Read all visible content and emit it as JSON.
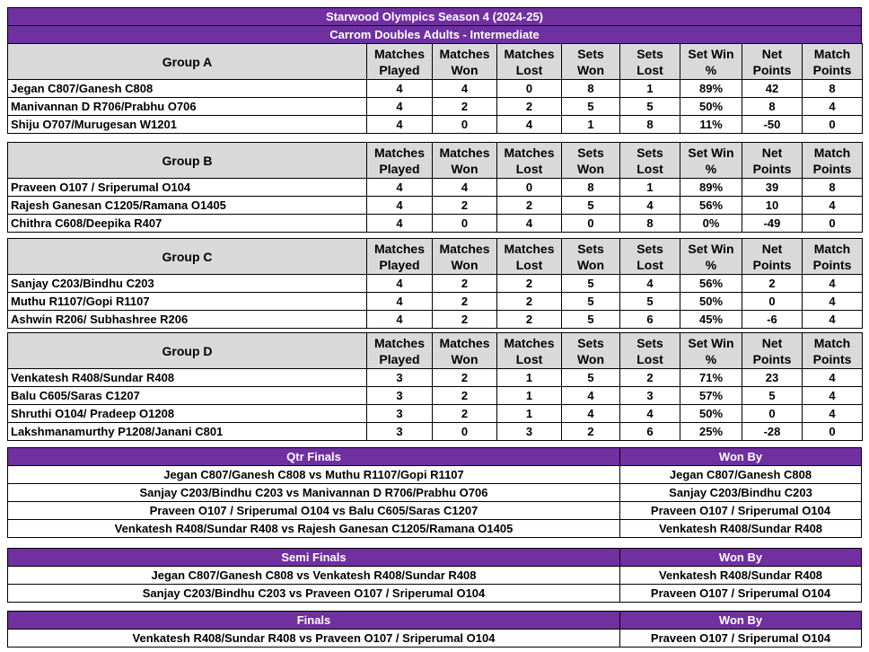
{
  "title": "Starwood Olympics Season 4 (2024-25)",
  "subtitle": "Carrom Doubles Adults - Intermediate",
  "columns": [
    [
      "Matches",
      "Played"
    ],
    [
      "Matches",
      "Won"
    ],
    [
      "Matches",
      "Lost"
    ],
    [
      "Sets",
      "Won"
    ],
    [
      "Sets",
      "Lost"
    ],
    [
      "Set Win",
      "%"
    ],
    [
      "Net",
      "Points"
    ],
    [
      "Match",
      "Points"
    ]
  ],
  "groups": [
    {
      "name": "Group A",
      "rows": [
        [
          "Jegan C807/Ganesh C808",
          4,
          4,
          0,
          8,
          1,
          "89%",
          42,
          8
        ],
        [
          "Manivannan D R706/Prabhu O706",
          4,
          2,
          2,
          5,
          5,
          "50%",
          8,
          4
        ],
        [
          "Shiju O707/Murugesan W1201",
          4,
          0,
          4,
          1,
          8,
          "11%",
          -50,
          0
        ]
      ]
    },
    {
      "name": "Group B",
      "rows": [
        [
          "Praveen O107 / Sriperumal O104",
          4,
          4,
          0,
          8,
          1,
          "89%",
          39,
          8
        ],
        [
          "Rajesh Ganesan C1205/Ramana O1405",
          4,
          2,
          2,
          5,
          4,
          "56%",
          10,
          4
        ],
        [
          "Chithra C608/Deepika R407",
          4,
          0,
          4,
          0,
          8,
          "0%",
          -49,
          0
        ]
      ]
    },
    {
      "name": "Group C",
      "rows": [
        [
          "Sanjay C203/Bindhu C203",
          4,
          2,
          2,
          5,
          4,
          "56%",
          2,
          4
        ],
        [
          "Muthu R1107/Gopi R1107",
          4,
          2,
          2,
          5,
          5,
          "50%",
          0,
          4
        ],
        [
          "Ashwin R206/ Subhashree R206",
          4,
          2,
          2,
          5,
          6,
          "45%",
          -6,
          4
        ]
      ]
    },
    {
      "name": "Group D",
      "rows": [
        [
          "Venkatesh R408/Sundar R408",
          3,
          2,
          1,
          5,
          2,
          "71%",
          23,
          4
        ],
        [
          "Balu C605/Saras C1207",
          3,
          2,
          1,
          4,
          3,
          "57%",
          5,
          4
        ],
        [
          "Shruthi O104/ Pradeep O1208",
          3,
          2,
          1,
          4,
          4,
          "50%",
          0,
          4
        ],
        [
          "Lakshmanamurthy P1208/Janani C801",
          3,
          0,
          3,
          2,
          6,
          "25%",
          -28,
          0
        ]
      ]
    }
  ],
  "knockouts": [
    {
      "title": "Qtr Finals",
      "won_by": "Won By",
      "matches": [
        {
          "match": "Jegan C807/Ganesh C808 vs Muthu R1107/Gopi R1107",
          "winner": "Jegan C807/Ganesh C808"
        },
        {
          "match": "Sanjay C203/Bindhu C203 vs Manivannan D R706/Prabhu O706",
          "winner": "Sanjay C203/Bindhu C203"
        },
        {
          "match": "Praveen O107 / Sriperumal O104 vs Balu C605/Saras C1207",
          "winner": "Praveen O107 / Sriperumal O104"
        },
        {
          "match": "Venkatesh R408/Sundar R408 vs Rajesh Ganesan C1205/Ramana O1405",
          "winner": "Venkatesh R408/Sundar R408"
        }
      ]
    },
    {
      "title": "Semi Finals",
      "won_by": "Won By",
      "matches": [
        {
          "match": "Jegan C807/Ganesh C808 vs Venkatesh R408/Sundar R408",
          "winner": "Venkatesh R408/Sundar R408"
        },
        {
          "match": "Sanjay C203/Bindhu C203 vs Praveen O107 / Sriperumal O104",
          "winner": "Praveen O107 / Sriperumal O104"
        }
      ]
    },
    {
      "title": "Finals",
      "won_by": "Won By",
      "matches": [
        {
          "match": "Venkatesh R408/Sundar R408 vs Praveen O107 / Sriperumal O104",
          "winner": "Praveen O107 / Sriperumal O104"
        }
      ]
    }
  ]
}
